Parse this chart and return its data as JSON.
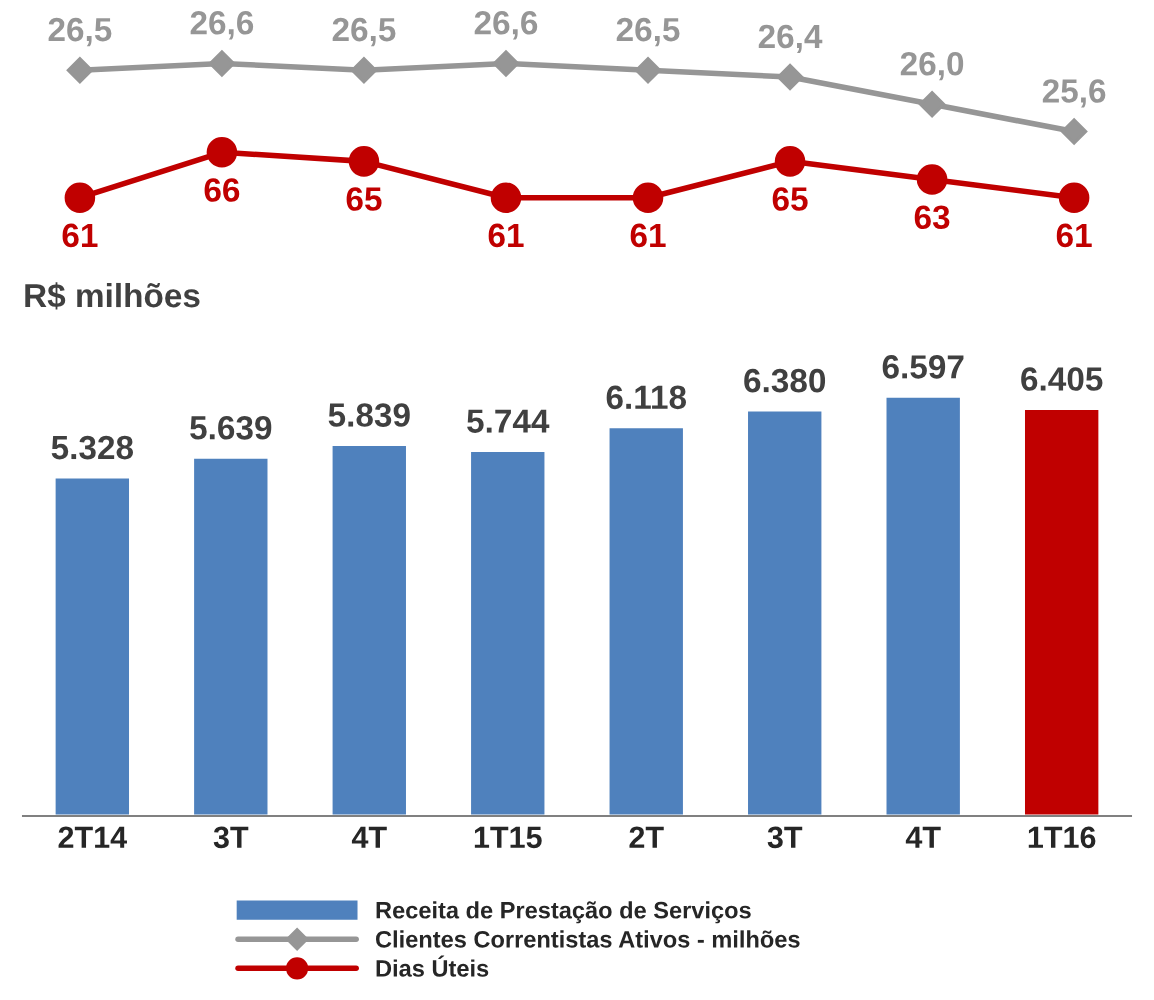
{
  "chart_data": [
    {
      "type": "line",
      "categories": [
        null,
        null,
        null,
        null,
        null,
        null,
        null,
        null
      ],
      "tick_labels": false,
      "legend": "bottom",
      "series": [
        {
          "name": "Clientes Correntistas Ativos - milhões",
          "color": "#969696",
          "marker": "diamond",
          "values": [
            26.5,
            26.6,
            26.5,
            26.6,
            26.5,
            26.4,
            26.0,
            25.6
          ],
          "value_labels": [
            "26,5",
            "26,6",
            "26,5",
            "26,6",
            "26,5",
            "26,4",
            "26,0",
            "25,6"
          ]
        }
      ]
    },
    {
      "type": "line",
      "categories": [
        null,
        null,
        null,
        null,
        null,
        null,
        null,
        null
      ],
      "tick_labels": false,
      "legend": "bottom",
      "series": [
        {
          "name": "Dias Úteis",
          "color": "#c00000",
          "marker": "circle",
          "values": [
            61,
            66,
            65,
            61,
            61,
            65,
            63,
            61
          ],
          "value_labels": [
            "61",
            "66",
            "65",
            "61",
            "61",
            "65",
            "63",
            "61"
          ]
        }
      ]
    },
    {
      "type": "bar",
      "title": "R$ milhões",
      "categories": [
        "2T14",
        "3T",
        "4T",
        "1T15",
        "2T",
        "3T",
        "4T",
        "1T16"
      ],
      "tick_labels": "x",
      "legend": "bottom",
      "series": [
        {
          "name": "Receita de Prestação de Serviços",
          "color": "#4f81bd",
          "colors": [
            "#4f81bd",
            "#4f81bd",
            "#4f81bd",
            "#4f81bd",
            "#4f81bd",
            "#4f81bd",
            "#4f81bd",
            "#c00000"
          ],
          "values": [
            5328,
            5639,
            5839,
            5744,
            6118,
            6380,
            6597,
            6405
          ],
          "value_labels": [
            "5.328",
            "5.639",
            "5.839",
            "5.744",
            "6.118",
            "6.380",
            "6.597",
            "6.405"
          ]
        }
      ]
    }
  ]
}
